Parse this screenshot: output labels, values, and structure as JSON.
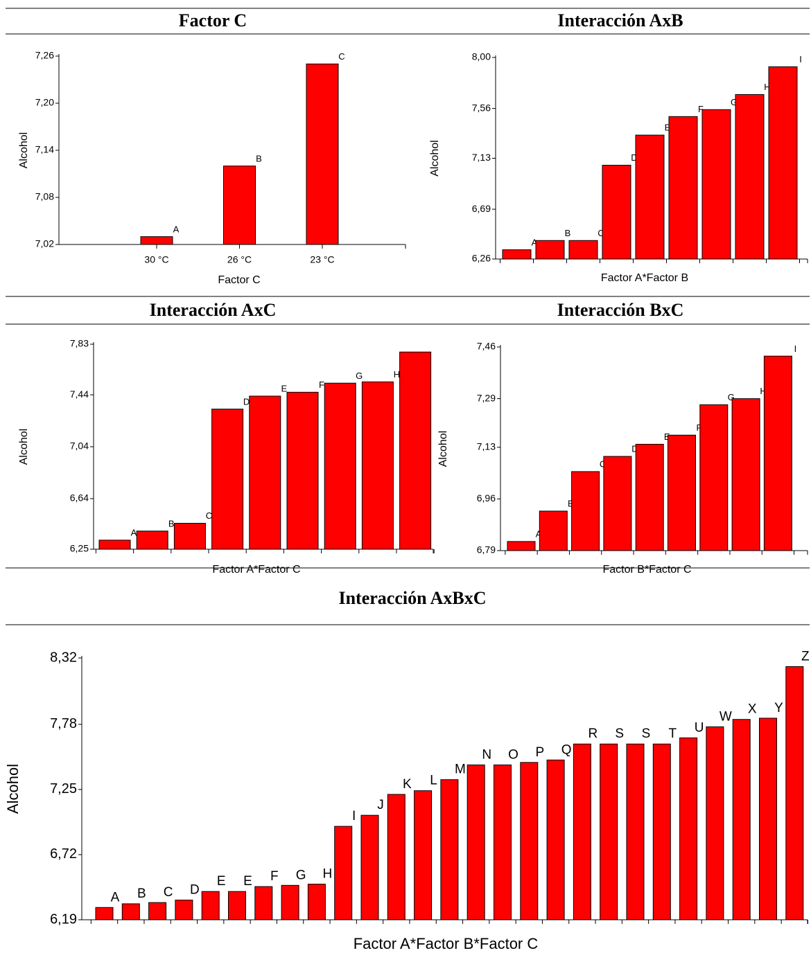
{
  "chart_data": [
    {
      "type": "bar",
      "title": "Factor C",
      "x_label": "Factor C",
      "y_label": "Alcohol",
      "color": "#ff0000",
      "categories": [
        "30 °C",
        "26 °C",
        "23 °C"
      ],
      "values": [
        7.03,
        7.12,
        7.25
      ],
      "letters": [
        "A",
        "B",
        "C"
      ],
      "ylim": [
        7.02,
        7.26
      ],
      "yticks": [
        {
          "value": 7.02,
          "label": "7,02"
        },
        {
          "value": 7.08,
          "label": "7,08"
        },
        {
          "value": 7.14,
          "label": "7,14"
        },
        {
          "value": 7.2,
          "label": "7,20"
        },
        {
          "value": 7.26,
          "label": "7,26"
        }
      ]
    },
    {
      "type": "bar",
      "title": "Interacción AxB",
      "x_label": "Factor A*Factor B",
      "y_label": "Alcohol",
      "color": "#ff0000",
      "categories": [
        null,
        null,
        null,
        null,
        null,
        null,
        null,
        null,
        null
      ],
      "values": [
        6.34,
        6.42,
        6.42,
        7.07,
        7.33,
        7.49,
        7.55,
        7.68,
        7.92
      ],
      "letters": [
        "A",
        "B",
        "C",
        "D",
        "E",
        "F",
        "G",
        "H",
        "I"
      ],
      "ylim": [
        6.26,
        8.0
      ],
      "yticks": [
        {
          "value": 6.26,
          "label": "6,26"
        },
        {
          "value": 6.69,
          "label": "6,69"
        },
        {
          "value": 7.13,
          "label": "7,13"
        },
        {
          "value": 7.56,
          "label": "7,56"
        },
        {
          "value": 8.0,
          "label": "8,00"
        }
      ]
    },
    {
      "type": "bar",
      "title": "Interacción AxC",
      "x_label": "Factor A*Factor C",
      "y_label": "Alcohol",
      "color": "#ff0000",
      "categories": [
        null,
        null,
        null,
        null,
        null,
        null,
        null,
        null,
        null
      ],
      "values": [
        6.32,
        6.39,
        6.45,
        7.33,
        7.43,
        7.46,
        7.53,
        7.54,
        7.77
      ],
      "letters": [
        "A",
        "B",
        "C",
        "D",
        "E",
        "F",
        "G",
        "H",
        null
      ],
      "ylim": [
        6.25,
        7.83
      ],
      "yticks": [
        {
          "value": 6.25,
          "label": "6,25"
        },
        {
          "value": 6.64,
          "label": "6,64"
        },
        {
          "value": 7.04,
          "label": "7,04"
        },
        {
          "value": 7.44,
          "label": "7,44"
        },
        {
          "value": 7.83,
          "label": "7,83"
        }
      ]
    },
    {
      "type": "bar",
      "title": "Interacción BxC",
      "x_label": "Factor B*Factor C",
      "y_label": "Alcohol",
      "color": "#ff0000",
      "categories": [
        null,
        null,
        null,
        null,
        null,
        null,
        null,
        null,
        null
      ],
      "values": [
        6.82,
        6.92,
        7.05,
        7.1,
        7.14,
        7.17,
        7.27,
        7.29,
        7.43
      ],
      "letters": [
        "A",
        "B",
        "C",
        "D",
        "E",
        "F",
        "G",
        "H",
        "I"
      ],
      "ylim": [
        6.79,
        7.46
      ],
      "yticks": [
        {
          "value": 6.79,
          "label": "6,79"
        },
        {
          "value": 6.96,
          "label": "6,96"
        },
        {
          "value": 7.13,
          "label": "7,13"
        },
        {
          "value": 7.29,
          "label": "7,29"
        },
        {
          "value": 7.46,
          "label": "7,46"
        }
      ]
    },
    {
      "type": "bar",
      "title": "Interacción AxBxC",
      "x_label": "Factor A*Factor B*Factor C",
      "y_label": "Alcohol",
      "color": "#ff0000",
      "categories": [
        null,
        null,
        null,
        null,
        null,
        null,
        null,
        null,
        null,
        null,
        null,
        null,
        null,
        null,
        null,
        null,
        null,
        null,
        null,
        null,
        null,
        null,
        null,
        null,
        null,
        null,
        null
      ],
      "values": [
        6.29,
        6.32,
        6.33,
        6.35,
        6.42,
        6.42,
        6.46,
        6.47,
        6.48,
        6.95,
        7.04,
        7.21,
        7.24,
        7.33,
        7.45,
        7.45,
        7.47,
        7.49,
        7.62,
        7.62,
        7.62,
        7.62,
        7.67,
        7.76,
        7.82,
        7.83,
        8.25
      ],
      "letters": [
        "A",
        "B",
        "C",
        "D",
        "E",
        "E",
        "F",
        "G",
        "H",
        "I",
        "J",
        "K",
        "L",
        "M",
        "N",
        "O",
        "P",
        "Q",
        "R",
        "S",
        "S",
        "T",
        "U",
        "W",
        "X",
        "Y",
        "Z"
      ],
      "ylim": [
        6.19,
        8.32
      ],
      "yticks": [
        {
          "value": 6.19,
          "label": "6,19"
        },
        {
          "value": 6.72,
          "label": "6,72"
        },
        {
          "value": 7.25,
          "label": "7,25"
        },
        {
          "value": 7.78,
          "label": "7,78"
        },
        {
          "value": 8.32,
          "label": "8,32"
        }
      ]
    }
  ]
}
